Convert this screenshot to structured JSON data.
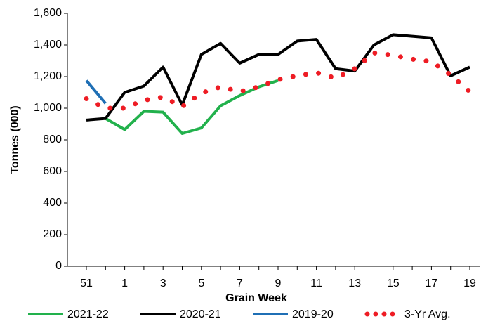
{
  "chart_data": {
    "type": "line",
    "x_label": "Grain Week",
    "y_label": "Tonnes (000)",
    "categories": [
      "51",
      null,
      "1",
      null,
      "3",
      null,
      "5",
      null,
      "7",
      null,
      "9",
      null,
      "11",
      null,
      "13",
      null,
      "15",
      null,
      "17",
      null,
      "19"
    ],
    "series": [
      {
        "name": "2021-22",
        "color": "#22b14c",
        "style": "solid",
        "values": [
          null,
          935,
          865,
          980,
          975,
          840,
          875,
          1015,
          1080,
          1135,
          1175,
          null,
          null,
          null,
          null,
          null,
          null,
          null,
          null,
          null,
          null
        ]
      },
      {
        "name": "2020-21",
        "color": "#000000",
        "style": "solid",
        "values": [
          925,
          935,
          1100,
          1140,
          1260,
          1020,
          1340,
          1410,
          1285,
          1340,
          1340,
          1425,
          1435,
          1250,
          1235,
          1400,
          1465,
          1455,
          1445,
          1205,
          1260
        ]
      },
      {
        "name": "2019-20",
        "color": "#1f6fb5",
        "style": "solid",
        "values": [
          1175,
          1030,
          null,
          null,
          null,
          null,
          null,
          null,
          null,
          null,
          null,
          null,
          null,
          null,
          null,
          null,
          null,
          null,
          null,
          null,
          null
        ]
      },
      {
        "name": "3-Yr Avg.",
        "color": "#ee1c24",
        "style": "dotted",
        "values": [
          1060,
          1000,
          1000,
          1050,
          1070,
          1010,
          1095,
          1135,
          1105,
          1135,
          1180,
          1205,
          1225,
          1190,
          1250,
          1350,
          1335,
          1310,
          1295,
          1210,
          1105
        ]
      }
    ],
    "ylim": [
      0,
      1600
    ],
    "yticks": [
      0,
      200,
      400,
      600,
      800,
      {
        "value": 1000,
        "label": "1,000"
      },
      {
        "value": 1200,
        "label": "1,200"
      },
      {
        "value": 1400,
        "label": "1,400"
      },
      {
        "value": 1600,
        "label": "1,600"
      }
    ],
    "grid": false,
    "legend": "bottom"
  }
}
